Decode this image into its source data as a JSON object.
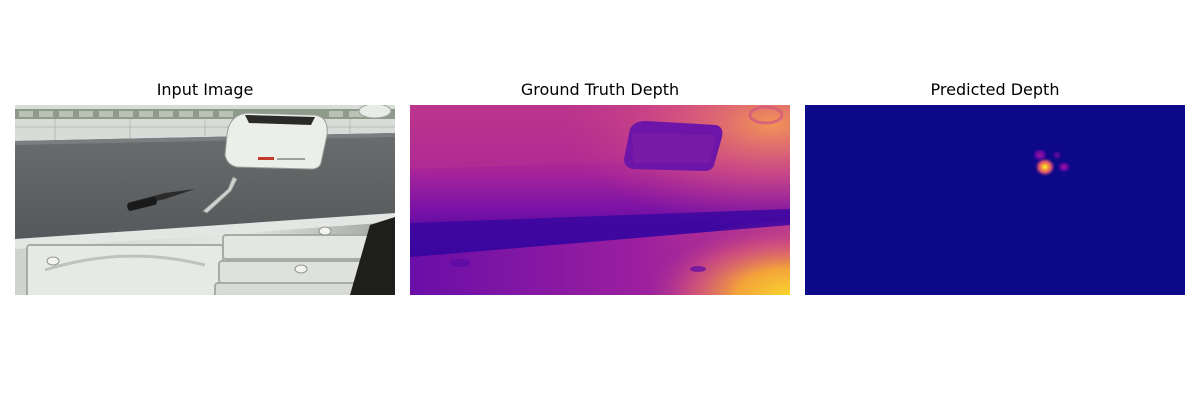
{
  "panels": [
    {
      "title": "Input Image"
    },
    {
      "title": "Ground Truth Depth"
    },
    {
      "title": "Predicted Depth"
    }
  ],
  "colormap": "plasma",
  "colors": {
    "background": "#ffffff",
    "plasma_low": "#0d0887",
    "plasma_mid": "#9c179e",
    "plasma_high": "#f0f921"
  }
}
